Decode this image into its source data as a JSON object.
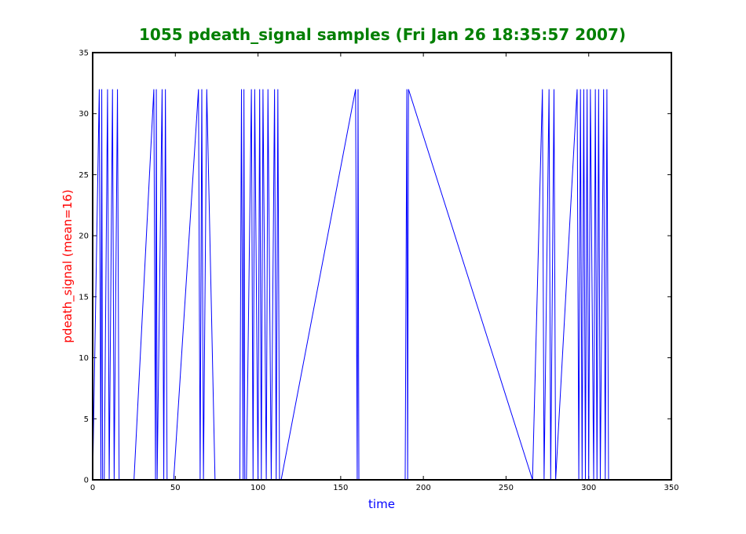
{
  "chart_data": {
    "type": "line",
    "title": "1055 pdeath_signal samples (Fri Jan 26 18:35:57 2007)",
    "xlabel": "time",
    "ylabel": "pdeath_signal (mean=16)",
    "xlim": [
      0,
      350
    ],
    "ylim": [
      0,
      35
    ],
    "xticks": [
      0,
      50,
      100,
      150,
      200,
      250,
      300,
      350
    ],
    "yticks": [
      0,
      5,
      10,
      15,
      20,
      25,
      30,
      35
    ],
    "grid": false,
    "colors": {
      "title": "#007f00",
      "xlabel": "#0000ff",
      "ylabel": "#ff0000",
      "series": "#0000ff",
      "axes": "#000000"
    },
    "series": [
      {
        "x": [
          0,
          4,
          5,
          5.5,
          6,
          7,
          9,
          10,
          12,
          13,
          15,
          16,
          25,
          37,
          38,
          38.5,
          39,
          42,
          43,
          44,
          45,
          49,
          64,
          65,
          66,
          67,
          69,
          74,
          89,
          90,
          91,
          91.5,
          92,
          93,
          96,
          97,
          98,
          100,
          101,
          102,
          103,
          105,
          106,
          108,
          110,
          111,
          112,
          113,
          114,
          159,
          160,
          160.5,
          161,
          189,
          190,
          190.5,
          191,
          266,
          272,
          273,
          276,
          277,
          279,
          280,
          293,
          294,
          295,
          296,
          297,
          298,
          299,
          300,
          301,
          303,
          304,
          305,
          306,
          307,
          309,
          310,
          311,
          312
        ],
        "y": [
          0,
          32,
          0,
          32,
          0,
          0,
          32,
          0,
          32,
          0,
          32,
          0,
          0,
          32,
          0,
          32,
          0,
          32,
          0,
          32,
          0,
          0,
          32,
          0,
          32,
          0,
          32,
          0,
          0,
          32,
          0,
          32,
          0,
          0,
          32,
          0,
          32,
          0,
          32,
          0,
          32,
          0,
          32,
          0,
          32,
          0,
          32,
          0,
          0,
          32,
          0,
          32,
          0,
          0,
          32,
          0,
          32,
          0,
          32,
          0,
          32,
          0,
          32,
          0,
          32,
          0,
          32,
          0,
          32,
          0,
          32,
          0,
          32,
          0,
          32,
          0,
          32,
          0,
          32,
          0,
          32,
          0
        ]
      }
    ]
  }
}
